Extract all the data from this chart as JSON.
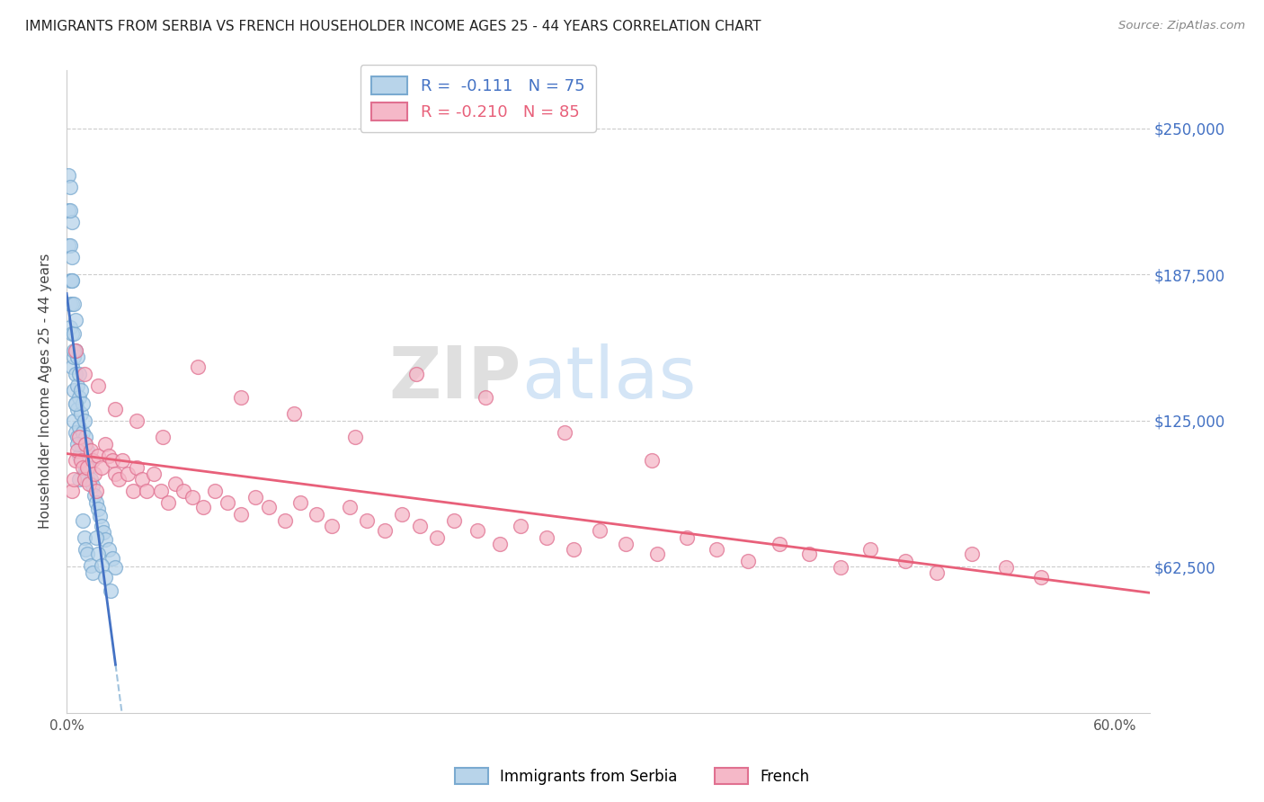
{
  "title": "IMMIGRANTS FROM SERBIA VS FRENCH HOUSEHOLDER INCOME AGES 25 - 44 YEARS CORRELATION CHART",
  "source": "Source: ZipAtlas.com",
  "ylabel": "Householder Income Ages 25 - 44 years",
  "xlim": [
    0.0,
    0.62
  ],
  "ylim": [
    0,
    275000
  ],
  "xtick_labels": [
    "0.0%",
    "",
    "",
    "",
    "",
    "",
    "60.0%"
  ],
  "xtick_values": [
    0.0,
    0.1,
    0.2,
    0.3,
    0.4,
    0.5,
    0.6
  ],
  "ytick_values": [
    62500,
    125000,
    187500,
    250000
  ],
  "right_ytick_labels": [
    "$62,500",
    "$125,000",
    "$187,500",
    "$250,000"
  ],
  "right_ytick_values": [
    62500,
    125000,
    187500,
    250000
  ],
  "legend_r_serbia": " -0.111",
  "legend_n_serbia": "75",
  "legend_r_french": "-0.210",
  "legend_n_french": "85",
  "color_serbia_face": "#b8d4ea",
  "color_serbia_edge": "#7aaad0",
  "color_french_face": "#f5b8c8",
  "color_french_edge": "#e07090",
  "color_trendline_serbia_solid": "#4472c4",
  "color_trendline_serbia_dash": "#7aaad0",
  "color_trendline_french": "#e8607a",
  "watermark_zip": "ZIP",
  "watermark_atlas": "atlas",
  "serbia_x": [
    0.001,
    0.001,
    0.001,
    0.002,
    0.002,
    0.002,
    0.002,
    0.002,
    0.003,
    0.003,
    0.003,
    0.003,
    0.003,
    0.003,
    0.004,
    0.004,
    0.004,
    0.004,
    0.004,
    0.005,
    0.005,
    0.005,
    0.005,
    0.005,
    0.006,
    0.006,
    0.006,
    0.006,
    0.007,
    0.007,
    0.007,
    0.007,
    0.008,
    0.008,
    0.008,
    0.009,
    0.009,
    0.009,
    0.01,
    0.01,
    0.01,
    0.011,
    0.011,
    0.012,
    0.012,
    0.013,
    0.014,
    0.015,
    0.016,
    0.017,
    0.018,
    0.019,
    0.02,
    0.021,
    0.022,
    0.024,
    0.026,
    0.028,
    0.002,
    0.003,
    0.004,
    0.005,
    0.006,
    0.007,
    0.009,
    0.01,
    0.011,
    0.012,
    0.014,
    0.015,
    0.017,
    0.018,
    0.02,
    0.022,
    0.025
  ],
  "serbia_y": [
    230000,
    215000,
    200000,
    225000,
    200000,
    185000,
    175000,
    165000,
    210000,
    195000,
    185000,
    175000,
    162000,
    148000,
    175000,
    162000,
    152000,
    138000,
    125000,
    168000,
    155000,
    145000,
    132000,
    120000,
    152000,
    140000,
    130000,
    118000,
    145000,
    135000,
    122000,
    110000,
    138000,
    128000,
    115000,
    132000,
    120000,
    108000,
    125000,
    115000,
    102000,
    118000,
    105000,
    112000,
    100000,
    105000,
    100000,
    97000,
    93000,
    90000,
    87000,
    84000,
    80000,
    77000,
    74000,
    70000,
    66000,
    62000,
    215000,
    185000,
    155000,
    132000,
    115000,
    100000,
    82000,
    75000,
    70000,
    68000,
    63000,
    60000,
    75000,
    68000,
    63000,
    58000,
    52000
  ],
  "french_x": [
    0.003,
    0.004,
    0.005,
    0.006,
    0.007,
    0.008,
    0.009,
    0.01,
    0.011,
    0.012,
    0.013,
    0.014,
    0.015,
    0.016,
    0.017,
    0.018,
    0.02,
    0.022,
    0.024,
    0.026,
    0.028,
    0.03,
    0.032,
    0.035,
    0.038,
    0.04,
    0.043,
    0.046,
    0.05,
    0.054,
    0.058,
    0.062,
    0.067,
    0.072,
    0.078,
    0.085,
    0.092,
    0.1,
    0.108,
    0.116,
    0.125,
    0.134,
    0.143,
    0.152,
    0.162,
    0.172,
    0.182,
    0.192,
    0.202,
    0.212,
    0.222,
    0.235,
    0.248,
    0.26,
    0.275,
    0.29,
    0.305,
    0.32,
    0.338,
    0.355,
    0.372,
    0.39,
    0.408,
    0.425,
    0.443,
    0.46,
    0.48,
    0.498,
    0.518,
    0.538,
    0.558,
    0.005,
    0.01,
    0.018,
    0.028,
    0.04,
    0.055,
    0.075,
    0.1,
    0.13,
    0.165,
    0.2,
    0.24,
    0.285,
    0.335
  ],
  "french_y": [
    95000,
    100000,
    108000,
    112000,
    118000,
    108000,
    105000,
    100000,
    115000,
    105000,
    98000,
    112000,
    108000,
    102000,
    95000,
    110000,
    105000,
    115000,
    110000,
    108000,
    102000,
    100000,
    108000,
    102000,
    95000,
    105000,
    100000,
    95000,
    102000,
    95000,
    90000,
    98000,
    95000,
    92000,
    88000,
    95000,
    90000,
    85000,
    92000,
    88000,
    82000,
    90000,
    85000,
    80000,
    88000,
    82000,
    78000,
    85000,
    80000,
    75000,
    82000,
    78000,
    72000,
    80000,
    75000,
    70000,
    78000,
    72000,
    68000,
    75000,
    70000,
    65000,
    72000,
    68000,
    62000,
    70000,
    65000,
    60000,
    68000,
    62000,
    58000,
    155000,
    145000,
    140000,
    130000,
    125000,
    118000,
    148000,
    135000,
    128000,
    118000,
    145000,
    135000,
    120000,
    108000
  ]
}
